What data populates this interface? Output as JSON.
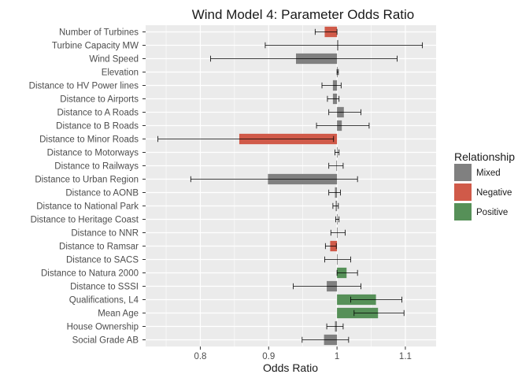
{
  "chart_data": {
    "type": "bar",
    "title": "Wind Model 4: Parameter Odds Ratio",
    "xlabel": "Odds Ratio",
    "ylabel": "",
    "orientation": "horizontal",
    "baseline": 1,
    "xlim": [
      0.72,
      1.145
    ],
    "xticks": [
      0.8,
      0.9,
      1,
      1.1
    ],
    "xtick_labels": [
      "0.8",
      "0.9",
      "1",
      "1.1"
    ],
    "grid": true,
    "legend": {
      "title": "Relationship",
      "position": "right",
      "entries": [
        {
          "name": "Mixed",
          "color": "#808080"
        },
        {
          "name": "Negative",
          "color": "#d05a49"
        },
        {
          "name": "Positive",
          "color": "#569058"
        }
      ]
    },
    "colors": {
      "Mixed": "#808080",
      "Negative": "#d05a49",
      "Positive": "#569058",
      "panel": "#ebebeb",
      "grid": "#ffffff"
    },
    "rows": [
      {
        "label": "Number of Turbines",
        "value": 0.982,
        "lo": 0.968,
        "hi": 1.0,
        "rel": "Negative"
      },
      {
        "label": "Turbine Capacity MW",
        "value": 1.002,
        "lo": 0.895,
        "hi": 1.125,
        "rel": "Mixed"
      },
      {
        "label": "Wind Speed",
        "value": 0.94,
        "lo": 0.815,
        "hi": 1.088,
        "rel": "Mixed"
      },
      {
        "label": "Elevation",
        "value": 1.001,
        "lo": 1.0,
        "hi": 1.002,
        "rel": "Mixed"
      },
      {
        "label": "Distance to HV Power lines",
        "value": 0.994,
        "lo": 0.978,
        "hi": 1.006,
        "rel": "Mixed"
      },
      {
        "label": "Distance to Airports",
        "value": 0.994,
        "lo": 0.986,
        "hi": 1.003,
        "rel": "Mixed"
      },
      {
        "label": "Distance to A Roads",
        "value": 1.01,
        "lo": 0.988,
        "hi": 1.035,
        "rel": "Mixed"
      },
      {
        "label": "Distance to B Roads",
        "value": 1.007,
        "lo": 0.97,
        "hi": 1.047,
        "rel": "Mixed"
      },
      {
        "label": "Distance to Minor Roads",
        "value": 0.857,
        "lo": 0.738,
        "hi": 0.995,
        "rel": "Negative"
      },
      {
        "label": "Distance to Motorways",
        "value": 1.0,
        "lo": 0.997,
        "hi": 1.003,
        "rel": "Mixed"
      },
      {
        "label": "Distance to Railways",
        "value": 0.999,
        "lo": 0.988,
        "hi": 1.009,
        "rel": "Mixed"
      },
      {
        "label": "Distance to  Urban Region",
        "value": 0.899,
        "lo": 0.786,
        "hi": 1.03,
        "rel": "Mixed"
      },
      {
        "label": "Distance to AONB",
        "value": 0.997,
        "lo": 0.988,
        "hi": 1.005,
        "rel": "Mixed"
      },
      {
        "label": "Distance to National Park",
        "value": 0.998,
        "lo": 0.994,
        "hi": 1.002,
        "rel": "Mixed"
      },
      {
        "label": "Distance to Heritage Coast",
        "value": 1.0,
        "lo": 0.998,
        "hi": 1.003,
        "rel": "Mixed"
      },
      {
        "label": "Distance to NNR",
        "value": 1.001,
        "lo": 0.991,
        "hi": 1.012,
        "rel": "Mixed"
      },
      {
        "label": "Distance to Ramsar",
        "value": 0.99,
        "lo": 0.983,
        "hi": 0.999,
        "rel": "Negative"
      },
      {
        "label": "Distance to SACS",
        "value": 1.001,
        "lo": 0.982,
        "hi": 1.02,
        "rel": "Mixed"
      },
      {
        "label": "Distance to Natura 2000",
        "value": 1.014,
        "lo": 1.0,
        "hi": 1.03,
        "rel": "Positive"
      },
      {
        "label": "Distance to SSSI",
        "value": 0.985,
        "lo": 0.936,
        "hi": 1.035,
        "rel": "Mixed"
      },
      {
        "label": "Qualifications, L4",
        "value": 1.057,
        "lo": 1.02,
        "hi": 1.095,
        "rel": "Positive"
      },
      {
        "label": "Mean Age",
        "value": 1.06,
        "lo": 1.025,
        "hi": 1.098,
        "rel": "Positive"
      },
      {
        "label": "House Ownership",
        "value": 0.997,
        "lo": 0.985,
        "hi": 1.009,
        "rel": "Mixed"
      },
      {
        "label": "Social Grade AB",
        "value": 0.981,
        "lo": 0.949,
        "hi": 1.017,
        "rel": "Mixed"
      }
    ]
  }
}
